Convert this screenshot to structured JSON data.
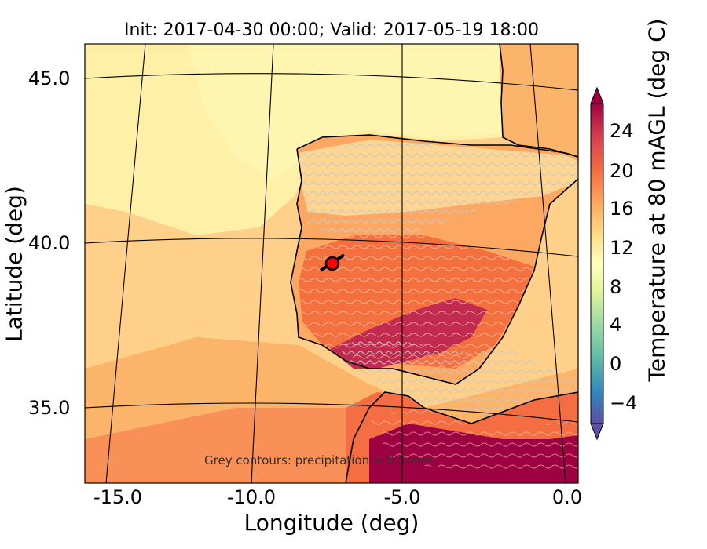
{
  "figure": {
    "title": "Init: 2017-04-30 00:00; Valid: 2017-05-19 18:00",
    "xlabel": "Longitude (deg)",
    "ylabel": "Latitude (deg)",
    "colorbar_label": "Temperature at 80 mAGL (deg C)",
    "annotation": "Grey contours: precipitation > 0.5 mm",
    "xticks": [
      "-15.0",
      "-10.0",
      "-5.0",
      "0.0"
    ],
    "yticks": [
      "45.0",
      "40.0",
      "35.0"
    ],
    "colorbar_ticks": [
      "24",
      "20",
      "16",
      "12",
      "8",
      "4",
      "0",
      "−4"
    ],
    "colorbar_range": [
      -8,
      28
    ],
    "marker": {
      "lon": -7.7,
      "lat": 39.4,
      "color": "#ff0000"
    },
    "colormap": [
      "#5e4fa2",
      "#3288bd",
      "#66c2a5",
      "#abdda4",
      "#e6f598",
      "#ffffbf",
      "#fee08b",
      "#fdae61",
      "#f46d43",
      "#d53e4f",
      "#9e0142"
    ]
  }
}
